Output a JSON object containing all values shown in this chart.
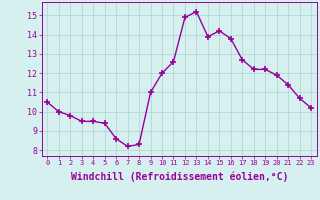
{
  "x": [
    0,
    1,
    2,
    3,
    4,
    5,
    6,
    7,
    8,
    9,
    10,
    11,
    12,
    13,
    14,
    15,
    16,
    17,
    18,
    19,
    20,
    21,
    22,
    23
  ],
  "y": [
    10.5,
    10.0,
    9.8,
    9.5,
    9.5,
    9.4,
    8.6,
    8.2,
    8.3,
    11.0,
    12.0,
    12.6,
    14.9,
    15.2,
    13.9,
    14.2,
    13.8,
    12.7,
    12.2,
    12.2,
    11.9,
    11.4,
    10.7,
    10.2
  ],
  "line_color": "#990099",
  "marker": "+",
  "marker_size": 4,
  "line_width": 1.0,
  "xlabel": "Windchill (Refroidissement éolien,°C)",
  "xlabel_fontsize": 7,
  "ylabel_ticks": [
    8,
    9,
    10,
    11,
    12,
    13,
    14,
    15
  ],
  "xtick_labels": [
    "0",
    "1",
    "2",
    "3",
    "4",
    "5",
    "6",
    "7",
    "8",
    "9",
    "10",
    "11",
    "12",
    "13",
    "14",
    "15",
    "16",
    "17",
    "18",
    "19",
    "20",
    "21",
    "22",
    "23"
  ],
  "ylim": [
    7.7,
    15.7
  ],
  "xlim": [
    -0.5,
    23.5
  ],
  "background_color": "#d5f0ee",
  "grid_color": "#b0d8d5",
  "tick_color": "#990099",
  "label_color": "#990099"
}
